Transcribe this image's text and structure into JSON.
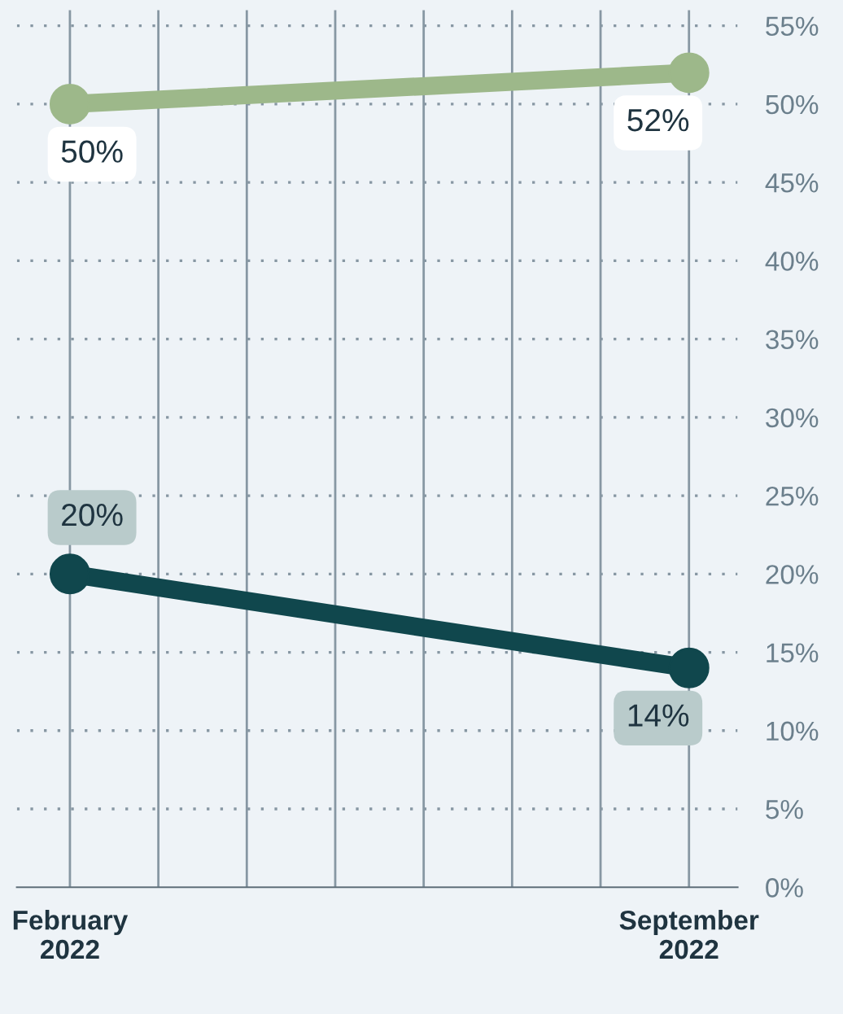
{
  "chart_data": {
    "type": "line",
    "categories": [
      "February\n2022",
      null,
      null,
      null,
      null,
      null,
      null,
      "September\n2022"
    ],
    "series": [
      {
        "color": "#9db88a",
        "values": [
          50,
          null,
          null,
          null,
          null,
          null,
          null,
          52
        ],
        "value_labels": [
          "50%",
          null,
          null,
          null,
          null,
          null,
          null,
          "52%"
        ]
      },
      {
        "color": "#10474d",
        "values": [
          20,
          null,
          null,
          null,
          null,
          null,
          null,
          14
        ],
        "value_labels": [
          "20%",
          null,
          null,
          null,
          null,
          null,
          null,
          "14%"
        ]
      }
    ],
    "ylim": [
      0,
      56
    ],
    "yticks": [
      {
        "value": 0,
        "label": "0%"
      },
      {
        "value": 5,
        "label": "5%"
      },
      {
        "value": 10,
        "label": "10%"
      },
      {
        "value": 15,
        "label": "15%"
      },
      {
        "value": 20,
        "label": "20%"
      },
      {
        "value": 25,
        "label": "25%"
      },
      {
        "value": 30,
        "label": "30%"
      },
      {
        "value": 35,
        "label": "35%"
      },
      {
        "value": 40,
        "label": "40%"
      },
      {
        "value": 45,
        "label": "45%"
      },
      {
        "value": 50,
        "label": "50%"
      },
      {
        "value": 55,
        "label": "55%"
      }
    ],
    "grid": true,
    "marker": "circle",
    "line_style": "solid"
  }
}
